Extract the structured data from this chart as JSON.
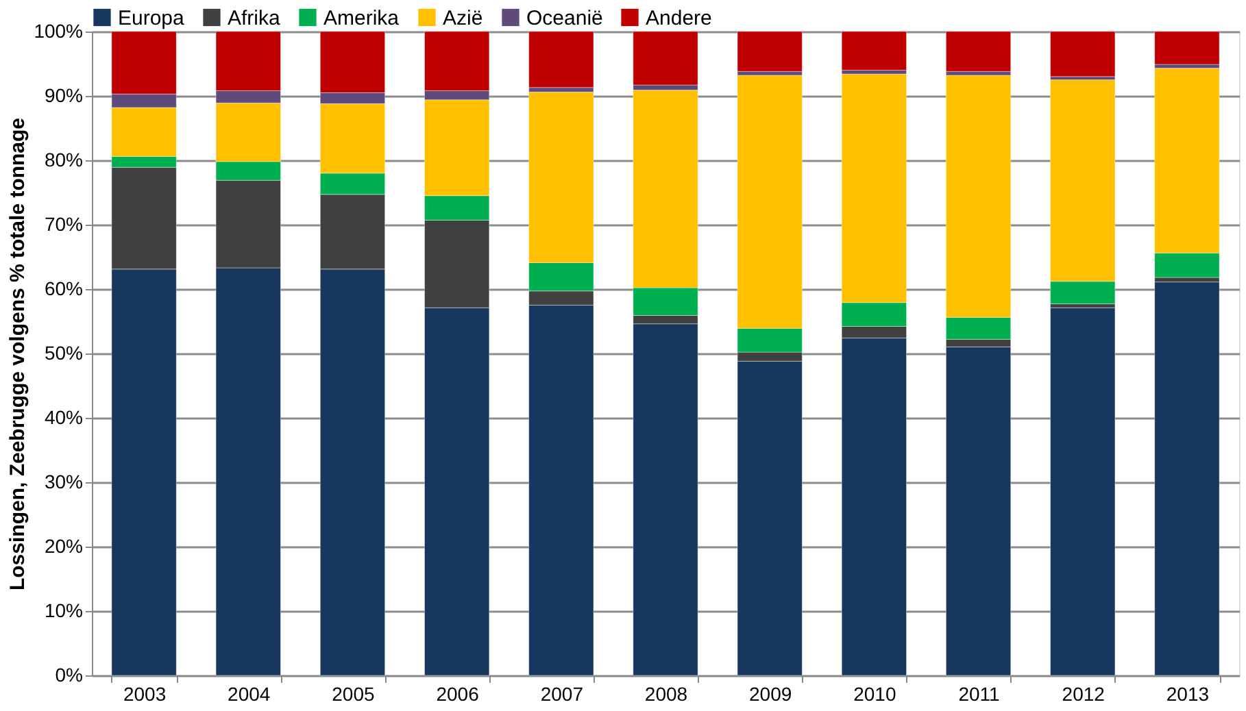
{
  "chart_data": {
    "type": "bar",
    "stacked": true,
    "ylabel": "Lossingen, Zeebrugge volgens % totale tonnage",
    "categories": [
      "2003",
      "2004",
      "2005",
      "2006",
      "2007",
      "2008",
      "2009",
      "2010",
      "2011",
      "2012",
      "2013"
    ],
    "series": [
      {
        "name": "Europa",
        "color": "#17375e",
        "values": [
          63.1,
          63.3,
          63.1,
          57.1,
          57.5,
          54.6,
          48.8,
          52.4,
          51.0,
          57.1,
          61.1
        ]
      },
      {
        "name": "Afrika",
        "color": "#404040",
        "values": [
          15.8,
          13.6,
          11.6,
          13.6,
          2.2,
          1.3,
          1.4,
          1.8,
          1.2,
          0.6,
          0.7
        ]
      },
      {
        "name": "Amerika",
        "color": "#00b050",
        "values": [
          1.7,
          2.9,
          3.3,
          3.8,
          4.4,
          4.3,
          3.7,
          3.7,
          3.4,
          3.5,
          3.8
        ]
      },
      {
        "name": "Azië",
        "color": "#ffc000",
        "values": [
          7.6,
          9.1,
          10.8,
          14.9,
          26.5,
          30.7,
          39.3,
          35.5,
          37.6,
          31.3,
          28.7
        ]
      },
      {
        "name": "Oceanië",
        "color": "#604a7b",
        "values": [
          2.1,
          1.9,
          1.7,
          1.4,
          0.7,
          0.8,
          0.6,
          0.6,
          0.6,
          0.5,
          0.6
        ]
      },
      {
        "name": "Andere",
        "color": "#c00000",
        "values": [
          9.7,
          9.2,
          9.5,
          9.2,
          8.7,
          8.3,
          6.2,
          6.0,
          6.2,
          7.0,
          5.1
        ]
      }
    ],
    "ylim": [
      0,
      100
    ],
    "yticks": [
      {
        "value": 0,
        "label": "0%"
      },
      {
        "value": 10,
        "label": "10%"
      },
      {
        "value": 20,
        "label": "20%"
      },
      {
        "value": 30,
        "label": "30%"
      },
      {
        "value": 40,
        "label": "40%"
      },
      {
        "value": 50,
        "label": "50%"
      },
      {
        "value": 60,
        "label": "60%"
      },
      {
        "value": 70,
        "label": "70%"
      },
      {
        "value": 80,
        "label": "80%"
      },
      {
        "value": 90,
        "label": "90%"
      },
      {
        "value": 100,
        "label": "100%"
      }
    ],
    "grid": "y",
    "legend": "top"
  }
}
